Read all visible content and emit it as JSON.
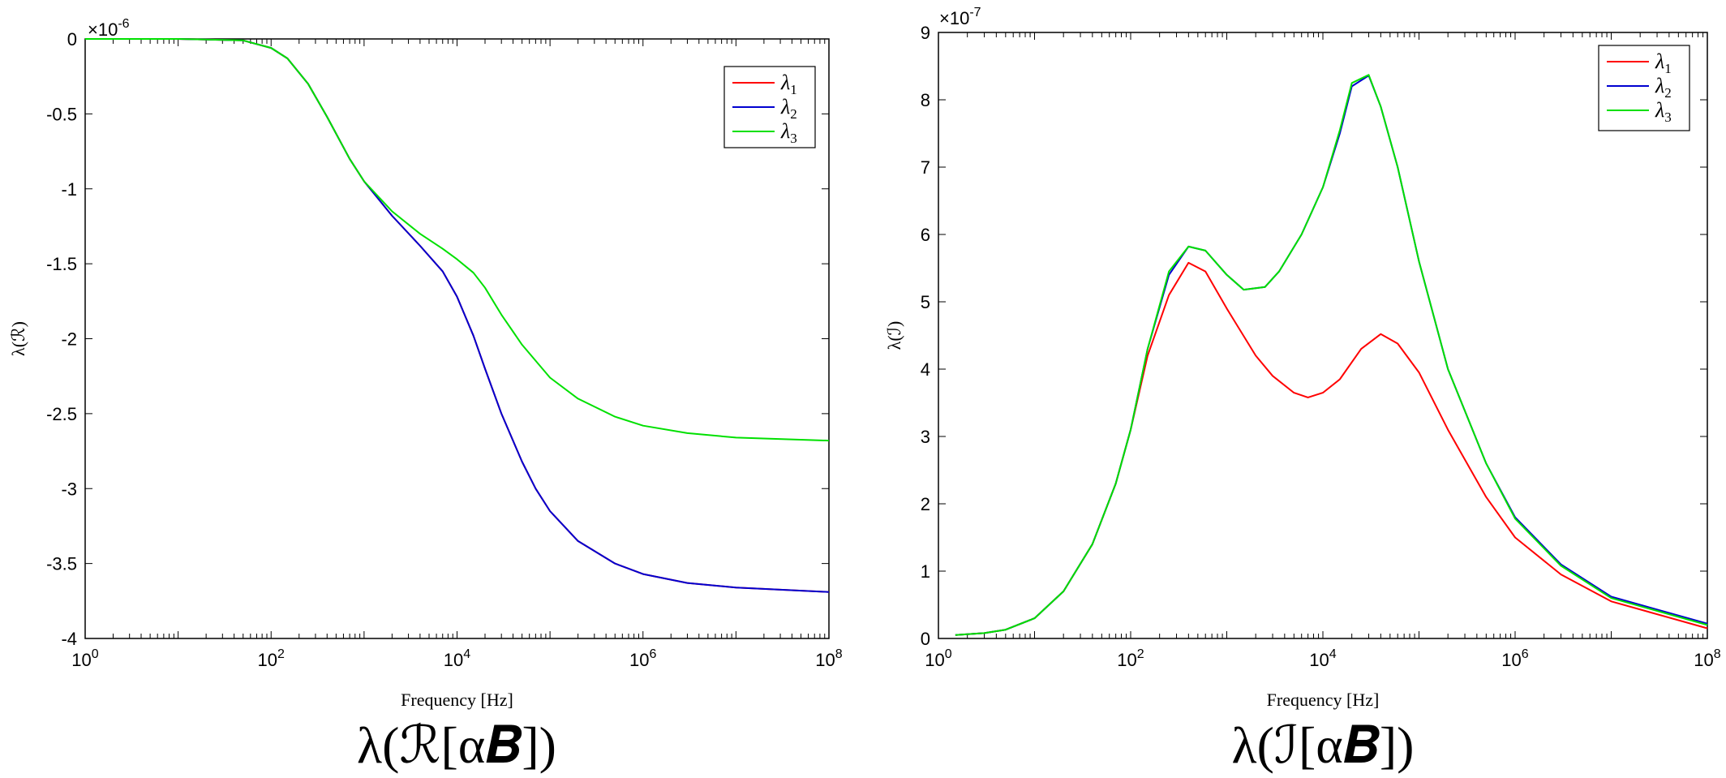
{
  "chart_data": [
    {
      "type": "line",
      "xscale": "log",
      "xlim": [
        1,
        100000000
      ],
      "ylim": [
        -4,
        0
      ],
      "y_multiplier": "×10",
      "y_multiplier_exp": "-6",
      "xlabel": "Frequency [Hz]",
      "ylabel": "λ(ℛ)",
      "caption": "λ(ℛ[α𝑩])",
      "legend_position": "top-right",
      "x_ticks": [
        1,
        100,
        10000,
        1000000,
        100000000
      ],
      "x_tick_labels": [
        {
          "base": "10",
          "exp": "0"
        },
        {
          "base": "10",
          "exp": "2"
        },
        {
          "base": "10",
          "exp": "4"
        },
        {
          "base": "10",
          "exp": "6"
        },
        {
          "base": "10",
          "exp": "8"
        }
      ],
      "y_ticks": [
        0,
        -0.5,
        -1,
        -1.5,
        -2,
        -2.5,
        -3,
        -3.5,
        -4
      ],
      "y_tick_labels": [
        "0",
        "-0.5",
        "-1",
        "-1.5",
        "-2",
        "-2.5",
        "-3",
        "-3.5",
        "-4"
      ],
      "series": [
        {
          "name": "λ1",
          "label_base": "λ",
          "label_sub": "1",
          "color": "#ff0000",
          "x": [
            1,
            10,
            50,
            100,
            150,
            250,
            400,
            700,
            1000,
            2000,
            4000,
            7000,
            10000,
            15000,
            20000,
            30000,
            50000,
            70000,
            100000,
            200000,
            500000,
            1000000,
            3000000,
            10000000,
            100000000
          ],
          "y": [
            0,
            0,
            -0.01,
            -0.06,
            -0.13,
            -0.3,
            -0.52,
            -0.8,
            -0.95,
            -1.18,
            -1.38,
            -1.55,
            -1.72,
            -1.98,
            -2.2,
            -2.5,
            -2.82,
            -3.0,
            -3.15,
            -3.35,
            -3.5,
            -3.57,
            -3.63,
            -3.66,
            -3.69
          ]
        },
        {
          "name": "λ2",
          "label_base": "λ",
          "label_sub": "2",
          "color": "#0000d0",
          "x": [
            1,
            10,
            50,
            100,
            150,
            250,
            400,
            700,
            1000,
            2000,
            4000,
            7000,
            10000,
            15000,
            20000,
            30000,
            50000,
            70000,
            100000,
            200000,
            500000,
            1000000,
            3000000,
            10000000,
            100000000
          ],
          "y": [
            0,
            0,
            -0.01,
            -0.06,
            -0.13,
            -0.3,
            -0.52,
            -0.8,
            -0.95,
            -1.18,
            -1.38,
            -1.55,
            -1.72,
            -1.98,
            -2.2,
            -2.5,
            -2.82,
            -3.0,
            -3.15,
            -3.35,
            -3.5,
            -3.57,
            -3.63,
            -3.66,
            -3.69
          ]
        },
        {
          "name": "λ3",
          "label_base": "λ",
          "label_sub": "3",
          "color": "#00e000",
          "x": [
            1,
            10,
            50,
            100,
            150,
            250,
            400,
            700,
            1000,
            2000,
            4000,
            7000,
            10000,
            15000,
            20000,
            30000,
            50000,
            100000,
            200000,
            500000,
            1000000,
            3000000,
            10000000,
            100000000
          ],
          "y": [
            0,
            0,
            -0.01,
            -0.06,
            -0.13,
            -0.3,
            -0.52,
            -0.8,
            -0.95,
            -1.15,
            -1.3,
            -1.4,
            -1.47,
            -1.56,
            -1.66,
            -1.84,
            -2.04,
            -2.26,
            -2.4,
            -2.52,
            -2.58,
            -2.63,
            -2.66,
            -2.68
          ]
        }
      ]
    },
    {
      "type": "line",
      "xscale": "log",
      "xlim": [
        1,
        100000000
      ],
      "ylim": [
        0,
        9
      ],
      "y_multiplier": "×10",
      "y_multiplier_exp": "-7",
      "xlabel": "Frequency [Hz]",
      "ylabel": "λ(ℐ)",
      "caption": "λ(ℐ[α𝑩])",
      "legend_position": "top-right",
      "x_ticks": [
        1,
        100,
        10000,
        1000000,
        100000000
      ],
      "x_tick_labels": [
        {
          "base": "10",
          "exp": "0"
        },
        {
          "base": "10",
          "exp": "2"
        },
        {
          "base": "10",
          "exp": "4"
        },
        {
          "base": "10",
          "exp": "6"
        },
        {
          "base": "10",
          "exp": "8"
        }
      ],
      "y_ticks": [
        0,
        1,
        2,
        3,
        4,
        5,
        6,
        7,
        8,
        9
      ],
      "y_tick_labels": [
        "0",
        "1",
        "2",
        "3",
        "4",
        "5",
        "6",
        "7",
        "8",
        "9"
      ],
      "series": [
        {
          "name": "λ1",
          "label_base": "λ",
          "label_sub": "1",
          "color": "#ff0000",
          "x": [
            1.5,
            3,
            5,
            10,
            20,
            40,
            70,
            100,
            150,
            250,
            400,
            600,
            1000,
            2000,
            3000,
            5000,
            7000,
            10000,
            15000,
            25000,
            40000,
            60000,
            100000,
            200000,
            500000,
            1000000,
            3000000,
            10000000,
            100000000
          ],
          "y": [
            0.05,
            0.08,
            0.13,
            0.3,
            0.7,
            1.4,
            2.3,
            3.1,
            4.2,
            5.1,
            5.58,
            5.45,
            4.9,
            4.2,
            3.9,
            3.65,
            3.58,
            3.65,
            3.85,
            4.3,
            4.52,
            4.38,
            3.95,
            3.1,
            2.1,
            1.5,
            0.95,
            0.55,
            0.15
          ]
        },
        {
          "name": "λ2",
          "label_base": "λ",
          "label_sub": "2",
          "color": "#0000d0",
          "x": [
            1.5,
            3,
            5,
            10,
            20,
            40,
            70,
            100,
            150,
            250,
            400,
            600,
            1000,
            1500,
            2500,
            3500,
            6000,
            10000,
            15000,
            20000,
            30000,
            40000,
            60000,
            100000,
            200000,
            500000,
            1000000,
            3000000,
            10000000,
            100000000
          ],
          "y": [
            0.05,
            0.08,
            0.13,
            0.3,
            0.7,
            1.4,
            2.3,
            3.1,
            4.3,
            5.4,
            5.82,
            5.76,
            5.4,
            5.18,
            5.22,
            5.45,
            6.0,
            6.7,
            7.5,
            8.2,
            8.36,
            7.9,
            7.0,
            5.6,
            4.0,
            2.6,
            1.8,
            1.1,
            0.62,
            0.22
          ]
        },
        {
          "name": "λ3",
          "label_base": "λ",
          "label_sub": "3",
          "color": "#00e000",
          "x": [
            1.5,
            3,
            5,
            10,
            20,
            40,
            70,
            100,
            150,
            250,
            400,
            600,
            1000,
            1500,
            2500,
            3500,
            6000,
            10000,
            15000,
            20000,
            30000,
            40000,
            60000,
            100000,
            200000,
            500000,
            1000000,
            3000000,
            10000000,
            100000000
          ],
          "y": [
            0.05,
            0.08,
            0.13,
            0.3,
            0.7,
            1.4,
            2.3,
            3.1,
            4.3,
            5.45,
            5.82,
            5.76,
            5.4,
            5.18,
            5.22,
            5.45,
            6.0,
            6.7,
            7.55,
            8.25,
            8.37,
            7.9,
            7.0,
            5.6,
            4.0,
            2.6,
            1.78,
            1.08,
            0.6,
            0.2
          ]
        }
      ]
    }
  ]
}
